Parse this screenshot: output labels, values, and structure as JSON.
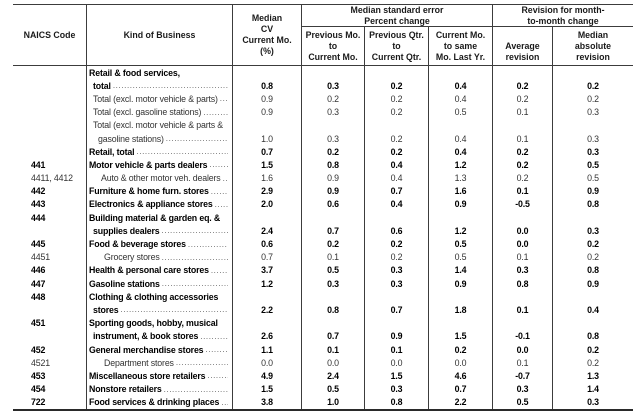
{
  "table": {
    "header": {
      "naics": "NAICS Code",
      "kind": "Kind of Business",
      "median_cv": "Median\nCV\nCurrent Mo.\n(%)",
      "se_group": "Median standard error\nPercent change",
      "se_prev_mo": "Previous Mo.\nto\nCurrent Mo.",
      "se_prev_qtr": "Previous Qtr.\nto\nCurrent Qtr.",
      "se_curr_mo": "Current Mo.\nto same\nMo. Last Yr.",
      "rev_group": "Revision for month-\nto-month change",
      "rev_avg": "Average\nrevision",
      "rev_med": "Median\nabsolute\nrevision"
    },
    "rows": [
      {
        "naics": "",
        "kind": "Retail & food services,",
        "indent": 0,
        "bold": true,
        "leader": false,
        "values": [
          "",
          "",
          "",
          "",
          "",
          ""
        ]
      },
      {
        "naics": "",
        "kind": "total",
        "indent": 1,
        "bold": true,
        "leader": true,
        "values": [
          "0.8",
          "0.3",
          "0.2",
          "0.4",
          "0.2",
          "0.2"
        ]
      },
      {
        "naics": "",
        "kind": "Total (excl. motor vehicle & parts)",
        "indent": 1,
        "bold": false,
        "leader": true,
        "values": [
          "0.9",
          "0.2",
          "0.2",
          "0.4",
          "0.2",
          "0.2"
        ]
      },
      {
        "naics": "",
        "kind": "Total (excl. gasoline stations)",
        "indent": 1,
        "bold": false,
        "leader": true,
        "values": [
          "0.9",
          "0.3",
          "0.2",
          "0.5",
          "0.1",
          "0.3"
        ]
      },
      {
        "naics": "",
        "kind": "Total (excl. motor vehicle & parts &",
        "indent": 1,
        "bold": false,
        "leader": false,
        "values": [
          "",
          "",
          "",
          "",
          "",
          ""
        ]
      },
      {
        "naics": "",
        "kind": "gasoline stations)",
        "indent": 2,
        "bold": false,
        "leader": true,
        "values": [
          "1.0",
          "0.3",
          "0.2",
          "0.4",
          "0.1",
          "0.3"
        ]
      },
      {
        "naics": "",
        "kind": "Retail, total",
        "indent": 0,
        "bold": true,
        "leader": true,
        "values": [
          "0.7",
          "0.2",
          "0.2",
          "0.4",
          "0.2",
          "0.3"
        ]
      },
      {
        "naics": "441",
        "kind": "Motor vehicle & parts dealers",
        "indent": 0,
        "bold": true,
        "leader": true,
        "values": [
          "1.5",
          "0.8",
          "0.4",
          "1.2",
          "0.2",
          "0.5"
        ]
      },
      {
        "naics": "4411, 4412",
        "kind": "Auto & other motor veh. dealers",
        "indent": 3,
        "bold": false,
        "leader": true,
        "values": [
          "1.6",
          "0.9",
          "0.4",
          "1.3",
          "0.2",
          "0.5"
        ]
      },
      {
        "naics": "442",
        "kind": "Furniture & home furn. stores",
        "indent": 0,
        "bold": true,
        "leader": true,
        "values": [
          "2.9",
          "0.9",
          "0.7",
          "1.6",
          "0.1",
          "0.9"
        ]
      },
      {
        "naics": "443",
        "kind": "Electronics & appliance stores",
        "indent": 0,
        "bold": true,
        "leader": true,
        "values": [
          "2.0",
          "0.6",
          "0.4",
          "0.9",
          "-0.5",
          "0.8"
        ]
      },
      {
        "naics": "444",
        "kind": "Building material & garden eq. &",
        "indent": 0,
        "bold": true,
        "leader": false,
        "values": [
          "",
          "",
          "",
          "",
          "",
          ""
        ]
      },
      {
        "naics": "",
        "kind": "supplies dealers",
        "indent": 1,
        "bold": true,
        "leader": true,
        "values": [
          "2.4",
          "0.7",
          "0.6",
          "1.2",
          "0.0",
          "0.3"
        ]
      },
      {
        "naics": "445",
        "kind": "Food & beverage stores",
        "indent": 0,
        "bold": true,
        "leader": true,
        "values": [
          "0.6",
          "0.2",
          "0.2",
          "0.5",
          "0.0",
          "0.2"
        ]
      },
      {
        "naics": "4451",
        "kind": "Grocery stores",
        "indent": 4,
        "bold": false,
        "leader": true,
        "values": [
          "0.7",
          "0.1",
          "0.2",
          "0.5",
          "0.1",
          "0.2"
        ]
      },
      {
        "naics": "446",
        "kind": "Health & personal care stores",
        "indent": 0,
        "bold": true,
        "leader": true,
        "values": [
          "3.7",
          "0.5",
          "0.3",
          "1.4",
          "0.3",
          "0.8"
        ]
      },
      {
        "naics": "447",
        "kind": "Gasoline stations",
        "indent": 0,
        "bold": true,
        "leader": true,
        "values": [
          "1.2",
          "0.3",
          "0.3",
          "0.9",
          "0.8",
          "0.9"
        ]
      },
      {
        "naics": "448",
        "kind": "Clothing & clothing accessories",
        "indent": 0,
        "bold": true,
        "leader": false,
        "values": [
          "",
          "",
          "",
          "",
          "",
          ""
        ]
      },
      {
        "naics": "",
        "kind": "stores",
        "indent": 1,
        "bold": true,
        "leader": true,
        "values": [
          "2.2",
          "0.8",
          "0.7",
          "1.8",
          "0.1",
          "0.4"
        ]
      },
      {
        "naics": "451",
        "kind": "Sporting goods, hobby, musical",
        "indent": 0,
        "bold": true,
        "leader": false,
        "values": [
          "",
          "",
          "",
          "",
          "",
          ""
        ]
      },
      {
        "naics": "",
        "kind": "instrument, & book stores",
        "indent": 1,
        "bold": true,
        "leader": true,
        "values": [
          "2.6",
          "0.7",
          "0.9",
          "1.5",
          "-0.1",
          "0.8"
        ]
      },
      {
        "naics": "452",
        "kind": "General merchandise stores",
        "indent": 0,
        "bold": true,
        "leader": true,
        "values": [
          "1.1",
          "0.1",
          "0.1",
          "0.2",
          "0.0",
          "0.2"
        ]
      },
      {
        "naics": "4521",
        "kind": "Department stores",
        "indent": 4,
        "bold": false,
        "leader": true,
        "values": [
          "0.0",
          "0.0",
          "0.0",
          "0.0",
          "0.1",
          "0.2"
        ]
      },
      {
        "naics": "453",
        "kind": "Miscellaneous store retailers",
        "indent": 0,
        "bold": true,
        "leader": true,
        "values": [
          "4.9",
          "2.4",
          "1.5",
          "4.6",
          "-0.7",
          "1.3"
        ]
      },
      {
        "naics": "454",
        "kind": "Nonstore retailers",
        "indent": 0,
        "bold": true,
        "leader": true,
        "values": [
          "1.5",
          "0.5",
          "0.3",
          "0.7",
          "0.3",
          "1.4"
        ]
      },
      {
        "naics": "722",
        "kind": "Food services & drinking places",
        "indent": 0,
        "bold": true,
        "leader": true,
        "values": [
          "3.8",
          "1.0",
          "0.8",
          "2.2",
          "0.5",
          "0.3"
        ]
      }
    ]
  },
  "colors": {
    "border": "#3c3c3c",
    "text": "#1a1a1a",
    "leader_dots": "#555555"
  }
}
